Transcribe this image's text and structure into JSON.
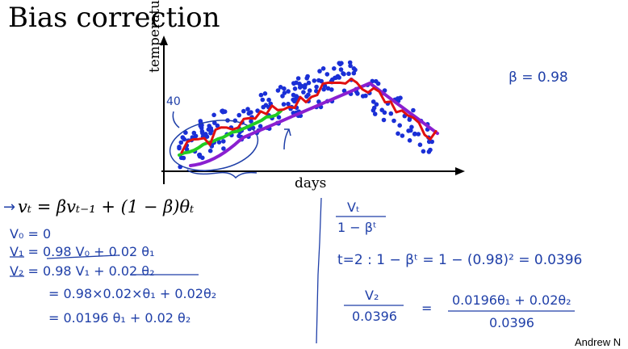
{
  "slide": {
    "title": "Bias correction",
    "formula": "vₜ = βvₜ₋₁ + (1 − β)θₜ",
    "credit": "Andrew N"
  },
  "plot": {
    "ylabel": "temperature",
    "xlabel": "days",
    "annotation_40": "40",
    "colors": {
      "dots": "#1a2fd6",
      "red": "#e01010",
      "green": "#22cc22",
      "purple": "#8a1fd0",
      "ink": "#1f3fa8"
    }
  },
  "notes": {
    "beta": "β = 0.98",
    "left": [
      "→",
      "V₀ = 0",
      "V₁ = 0.98 V₀ + 0.02 θ₁",
      "V₂ = 0.98 V₁ + 0.02 θ₂",
      "= 0.98×0.02×θ₁ + 0.02θ₂",
      "= 0.0196 θ₁ + 0.02 θ₂"
    ],
    "right": {
      "frac_num": "Vₜ",
      "frac_den": "1 − βᵗ",
      "t2_line": "t=2 :   1 − βᵗ  =  1 − (0.98)² = 0.0396",
      "v2": "V₂",
      "v2_den": "0.0396",
      "eq": "=",
      "rhs_num": "0.0196θ₁ + 0.02θ₂",
      "rhs_den": "0.0396"
    }
  }
}
